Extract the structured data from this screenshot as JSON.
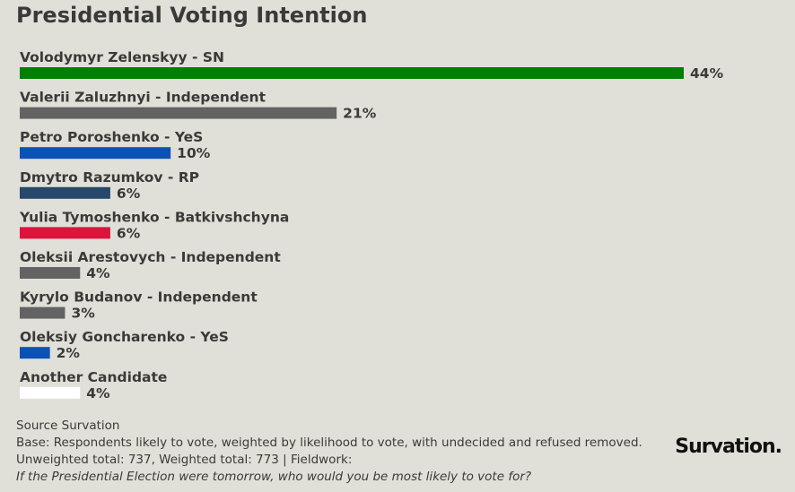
{
  "title": "Presidential Voting Intention",
  "chart_data": {
    "type": "bar",
    "orientation": "horizontal",
    "title": "Presidential Voting Intention",
    "categories": [
      "Volodymyr Zelenskyy - SN",
      "Valerii Zaluzhnyi - Independent",
      "Petro Poroshenko - YeS",
      "Dmytro Razumkov - RP",
      "Yulia Tymoshenko - Batkivshchyna",
      "Oleksii Arestovych - Independent",
      "Kyrylo Budanov - Independent",
      "Oleksiy Goncharenko - YeS",
      "Another Candidate"
    ],
    "values": [
      44,
      21,
      10,
      6,
      6,
      4,
      3,
      2,
      4
    ],
    "value_labels": [
      "44%",
      "21%",
      "10%",
      "6%",
      "6%",
      "4%",
      "3%",
      "2%",
      "4%"
    ],
    "colors": [
      "#008000",
      "#636363",
      "#0a52b5",
      "#26486a",
      "#dc143c",
      "#636363",
      "#636363",
      "#0a52b5",
      "#ffffff"
    ],
    "xlim": [
      0,
      50
    ],
    "grid": false,
    "legend": "none"
  },
  "footer": {
    "source": "Source Survation",
    "base": "Base: Respondents likely to vote, weighted by likelihood to vote, with undecided and refused removed.",
    "totals": "Unweighted total: 737, Weighted total: 773 | Fieldwork:",
    "question": "If the Presidential Election were tomorrow, who would you be most likely to vote for?"
  },
  "logo": "Survation."
}
